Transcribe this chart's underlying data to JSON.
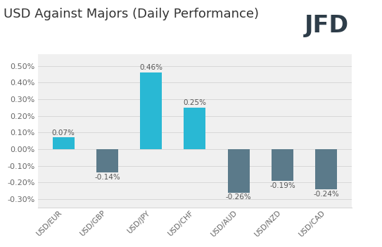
{
  "title": "USD Against Majors (Daily Performance)",
  "categories": [
    "USD/EUR",
    "USD/GBP",
    "USD/JPY",
    "USD/CHF",
    "USD/AUD",
    "USD/NZD",
    "USD/CAD"
  ],
  "values": [
    0.07,
    -0.14,
    0.46,
    0.25,
    -0.26,
    -0.19,
    -0.24
  ],
  "bar_color_positive": "#29b8d4",
  "bar_color_negative": "#5b7a8a",
  "ylim": [
    -0.35,
    0.57
  ],
  "yticks": [
    -0.3,
    -0.2,
    -0.1,
    0.0,
    0.1,
    0.2,
    0.3,
    0.4,
    0.5
  ],
  "ytick_labels": [
    "-0.30%",
    "-0.20%",
    "-0.10%",
    "0.00%",
    "0.10%",
    "0.20%",
    "0.30%",
    "0.40%",
    "0.50%"
  ],
  "title_fontsize": 13,
  "tick_fontsize": 8,
  "xlabel_fontsize": 7.5,
  "value_label_fontsize": 7.5,
  "background_color": "#ffffff",
  "plot_bg_color": "#f0f0f0",
  "grid_color": "#d8d8d8",
  "bar_width": 0.5,
  "jfd_color": "#2e3d49",
  "jfd_fontsize": 24,
  "title_color": "#333333",
  "tick_color": "#666666",
  "value_color": "#555555"
}
